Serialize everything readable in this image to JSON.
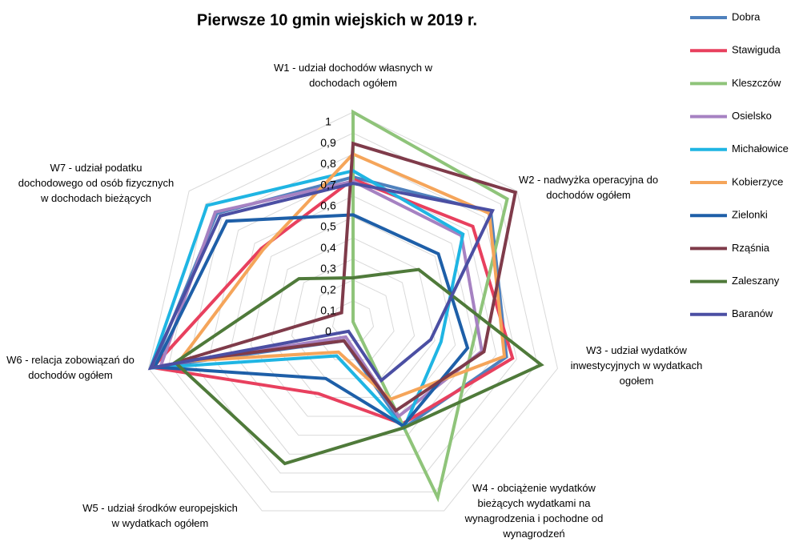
{
  "chart_data": {
    "type": "radar",
    "title": "Pierwsze 10 gmin wiejskich w 2019 r.",
    "categories": [
      "W1 - udział dochodów własnych w\ndochodach ogółem",
      "W2 - nadwyżka operacyjna do\ndochodów ogółem",
      "W3 - udział wydatków\ninwestycyjnych w wydatkach\nogołem",
      "W4 - obciążenie wydatków\nbieżących wydatkami na\nwynagrodzenia i pochodne od\nwynagrodzeń",
      "W5 - udział środków europejskich\nw wydatkach ogółem",
      "W6 - relacja zobowiązań do\ndochodów ogółem",
      "W7 - udział podatku\ndochodowego od osób fizycznych\nw dochodach bieżących"
    ],
    "ylim": [
      0,
      1
    ],
    "yticks": [
      0,
      {
        "value": 0.1,
        "label": "0,1"
      },
      {
        "value": 0.2,
        "label": "0,2"
      },
      {
        "value": 0.3,
        "label": "0,3"
      },
      {
        "value": 0.4,
        "label": "0,4"
      },
      {
        "value": 0.5,
        "label": "0,5"
      },
      {
        "value": 0.6,
        "label": "0,6"
      },
      {
        "value": 0.7,
        "label": "0,7"
      },
      {
        "value": 0.8,
        "label": "0,8"
      },
      {
        "value": 0.9,
        "label": "0,9"
      },
      1
    ],
    "grid": true,
    "legend": "right",
    "series": [
      {
        "name": "Dobra",
        "color": "#4f81bd",
        "values": [
          0.69,
          0.84,
          0.75,
          0.56,
          0.1,
          0.98,
          0.83
        ]
      },
      {
        "name": "Stawiguda",
        "color": "#e8405e",
        "values": [
          0.68,
          0.73,
          0.78,
          0.54,
          0.38,
          0.98,
          0.56
        ]
      },
      {
        "name": "Kleszczów",
        "color": "#8fc47a",
        "values": [
          1.0,
          0.94,
          0.58,
          0.93,
          0.0,
          0.0,
          0.0
        ]
      },
      {
        "name": "Osielsko",
        "color": "#a682c2",
        "values": [
          0.67,
          0.66,
          0.63,
          0.5,
          0.08,
          0.94,
          0.84
        ]
      },
      {
        "name": "Michałowice",
        "color": "#1fb5e3",
        "values": [
          0.72,
          0.67,
          0.43,
          0.56,
          0.18,
          0.99,
          0.89
        ]
      },
      {
        "name": "Kobierzyce",
        "color": "#f5a55a",
        "values": [
          0.8,
          0.83,
          0.74,
          0.41,
          0.16,
          0.85,
          0.55
        ]
      },
      {
        "name": "Zielonki",
        "color": "#1e5fa8",
        "values": [
          0.51,
          0.52,
          0.56,
          0.55,
          0.3,
          0.97,
          0.77
        ]
      },
      {
        "name": "Rząśnia",
        "color": "#7f3b4a",
        "values": [
          0.85,
          0.99,
          0.64,
          0.47,
          0.1,
          0.86,
          0.07
        ]
      },
      {
        "name": "Zaleszany",
        "color": "#4f7a3a",
        "values": [
          0.21,
          0.4,
          0.92,
          0.56,
          0.75,
          0.87,
          0.33
        ]
      },
      {
        "name": "Baranów",
        "color": "#4b4fa3",
        "values": [
          0.66,
          0.85,
          0.38,
          0.31,
          0.05,
          0.99,
          0.81
        ]
      }
    ]
  }
}
